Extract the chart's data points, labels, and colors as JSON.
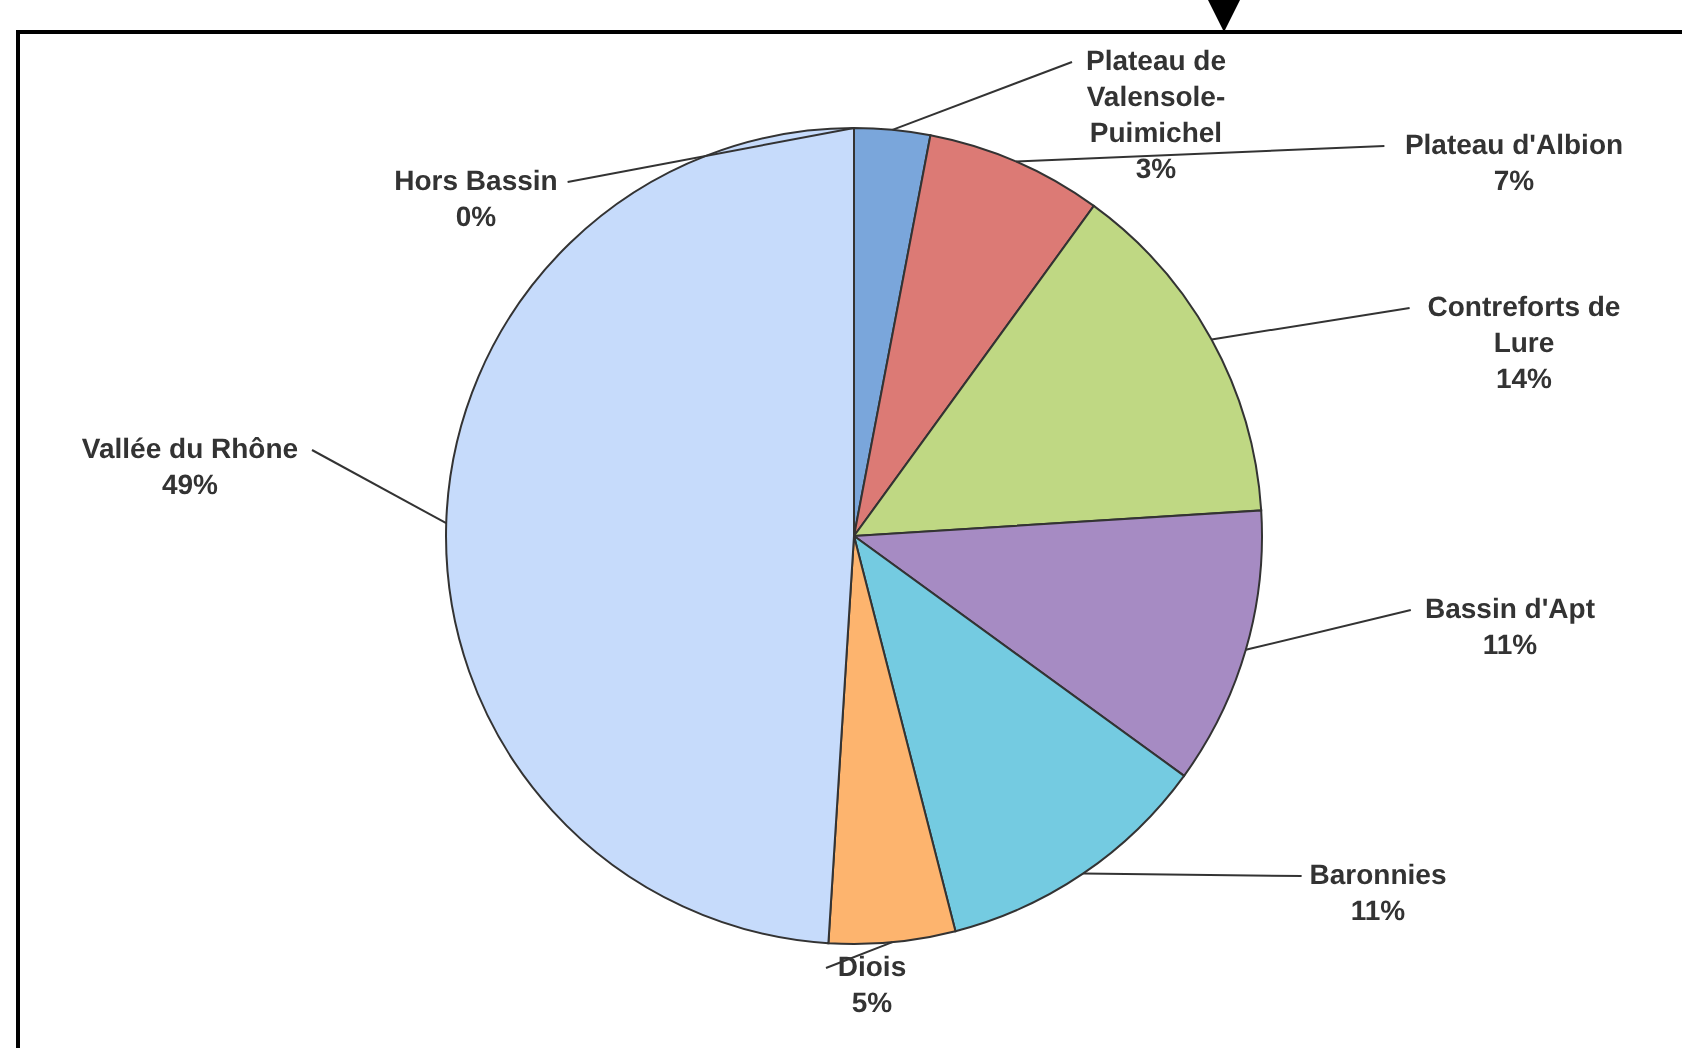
{
  "chart_data": {
    "type": "pie",
    "categories": [
      "Hors Bassin",
      "Plateau de Valensole-Puimichel",
      "Plateau d'Albion",
      "Contreforts de Lure",
      "Bassin d'Apt",
      "Baronnies",
      "Diois",
      "Vallée du Rhône"
    ],
    "values": [
      0,
      3,
      7,
      14,
      11,
      11,
      5,
      49
    ],
    "value_labels": [
      "0%",
      "3%",
      "7%",
      "14%",
      "11%",
      "11%",
      "5%",
      "49%"
    ],
    "colors": [
      "#4f81bd",
      "#7aa6db",
      "#dc7a75",
      "#bfd883",
      "#a68bc3",
      "#74cbe1",
      "#fdb46e",
      "#c6dbfb"
    ]
  }
}
